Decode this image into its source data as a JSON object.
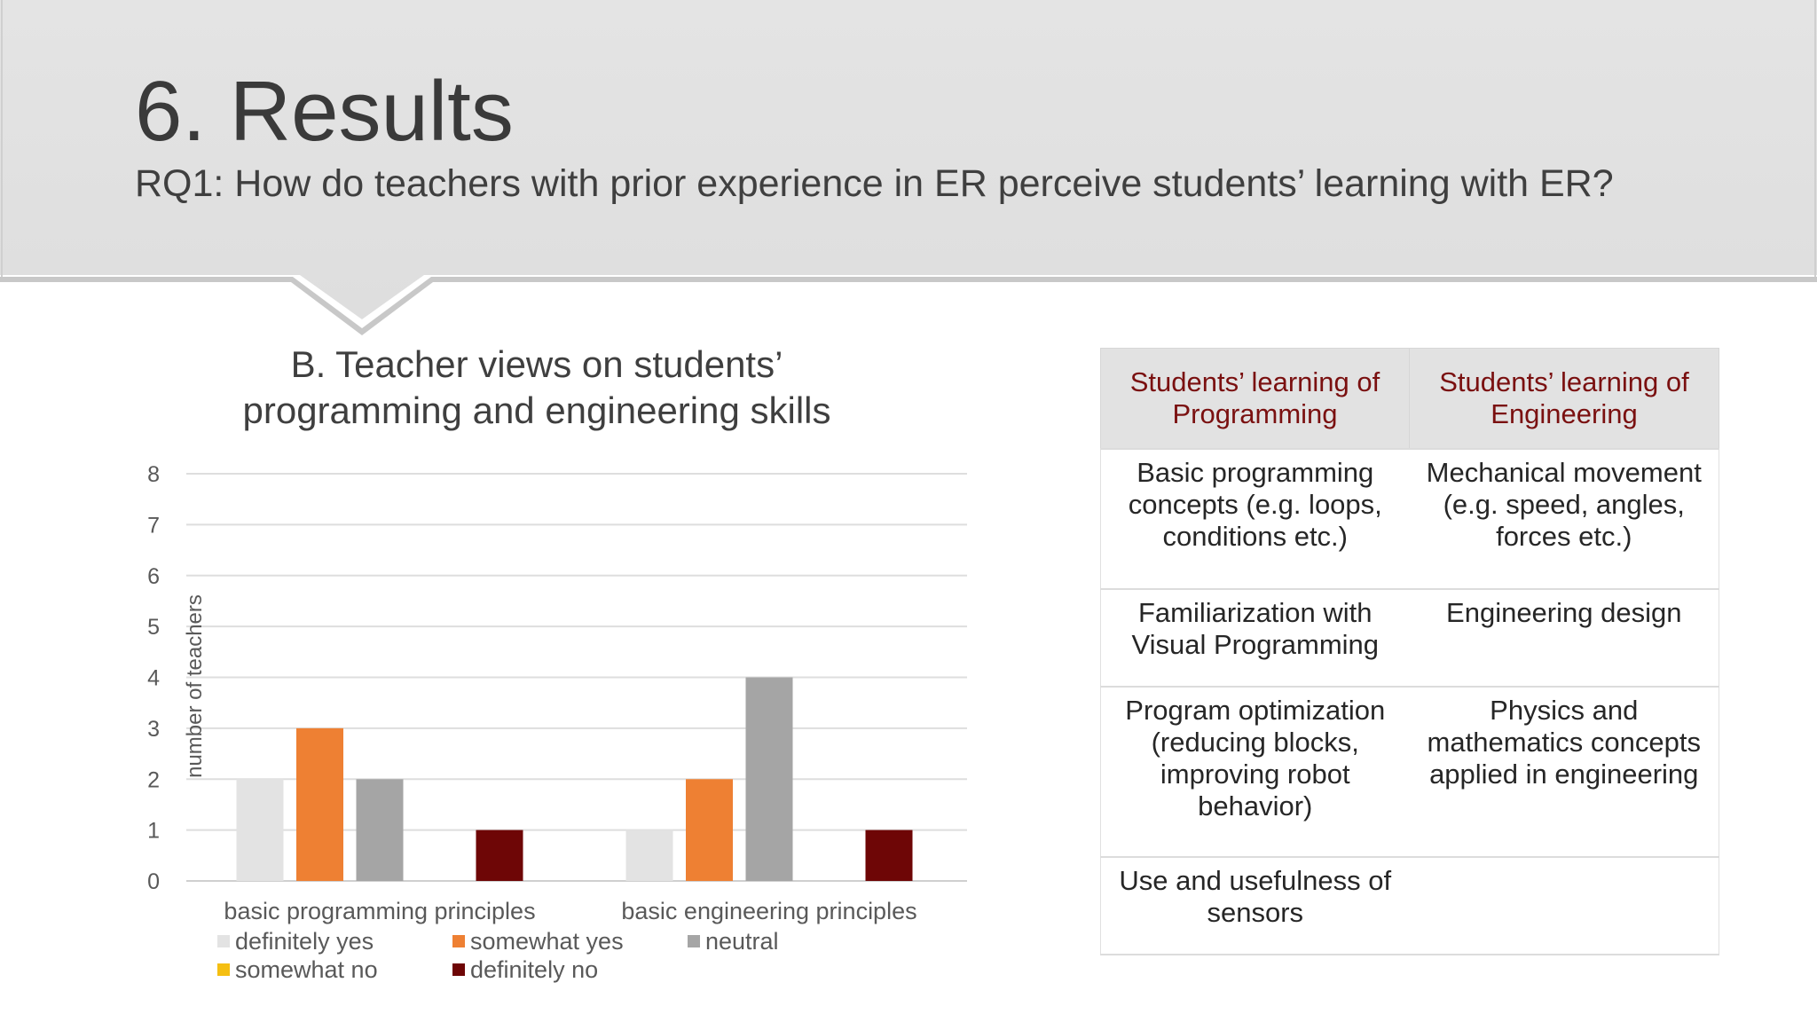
{
  "slide": {
    "title": "6. Results",
    "subtitle": "RQ1: How do teachers with prior experience in ER perceive students’ learning with ER?"
  },
  "chart_data": {
    "type": "bar",
    "title_lines": [
      "B. Teacher views on students’",
      "programming and engineering skills"
    ],
    "ylabel": "number of teachers",
    "xlabel": "",
    "ylim": [
      0,
      8
    ],
    "yticks": [
      0,
      1,
      2,
      3,
      4,
      5,
      6,
      7,
      8
    ],
    "grid": true,
    "legend_placement": "bottom",
    "categories": [
      "basic programming principles",
      "basic engineering principles"
    ],
    "series": [
      {
        "name": "definitely yes",
        "color": "#e3e3e3",
        "values": [
          2,
          1
        ]
      },
      {
        "name": "somewhat yes",
        "color": "#ee8033",
        "values": [
          3,
          2
        ]
      },
      {
        "name": "neutral",
        "color": "#a5a5a5",
        "values": [
          2,
          4
        ]
      },
      {
        "name": "somewhat no",
        "color": "#f5bf12",
        "values": [
          0,
          0
        ]
      },
      {
        "name": "definitely no",
        "color": "#6e0606",
        "values": [
          1,
          1
        ]
      }
    ]
  },
  "table": {
    "headers": [
      "Students’ learning of Programming",
      "Students’ learning of Engineering"
    ],
    "rows": [
      [
        "Basic programming concepts (e.g. loops, conditions etc.)",
        "Mechanical movement (e.g. speed, angles, forces etc.)"
      ],
      [
        "Familiarization with Visual Programming",
        "Engineering design"
      ],
      [
        "Program optimization (reducing blocks, improving robot behavior)",
        "Physics and mathematics concepts applied in engineering"
      ],
      [
        "Use and usefulness of sensors",
        ""
      ]
    ]
  },
  "colors": {
    "header_band": "#e2e2e2",
    "table_header_text": "#7a1010",
    "table_header_bg": "#e2e2e2"
  }
}
